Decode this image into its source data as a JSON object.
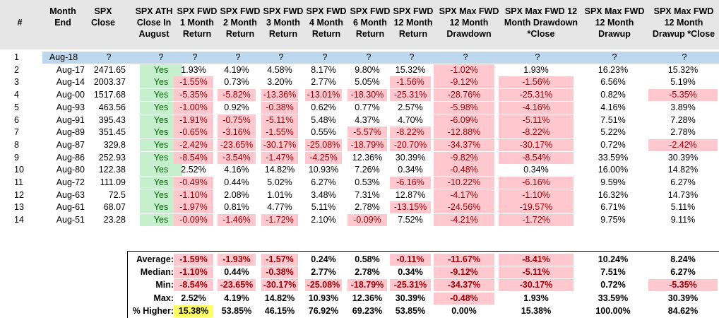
{
  "headers": [
    "#",
    "Month\nEnd",
    "SPX\nClose",
    "SPX ATH\nClose In\nAugust",
    "SPX FWD\n1 Month\nReturn",
    "SPX FWD\n2 Month\nReturn",
    "SPX FWD\n3 Month\nReturn",
    "SPX FWD\n4 Month\nReturn",
    "SPX FWD\n6 Month\nReturn",
    "SPX FWD\n12 Month\nReturn",
    "SPX Max FWD\n12 Month\nDrawdown",
    "SPX Max FWD 12\nMonth Drawdown\n*Close",
    "SPX Max FWD\n12 Month\nDrawup",
    "SPX Max FWD\n12 Month\nDrawup *Close"
  ],
  "rows": [
    [
      "1",
      "Aug-18",
      "?",
      "?",
      "?",
      "?",
      "?",
      "?",
      "?",
      "?",
      "?",
      "?",
      "?",
      "?"
    ],
    [
      "2",
      "Aug-17",
      "2471.65",
      "Yes",
      "1.93%",
      "4.19%",
      "4.58%",
      "8.17%",
      "9.80%",
      "15.32%",
      "-1.02%",
      "1.93%",
      "16.23%",
      "15.32%"
    ],
    [
      "3",
      "Aug-14",
      "2003.37",
      "Yes",
      "-1.55%",
      "0.73%",
      "3.20%",
      "2.77%",
      "5.05%",
      "-1.56%",
      "-9.12%",
      "-1.56%",
      "6.56%",
      "5.19%"
    ],
    [
      "4",
      "Aug-00",
      "1517.68",
      "Yes",
      "-5.35%",
      "-5.82%",
      "-13.36%",
      "-13.01%",
      "-18.30%",
      "-25.31%",
      "-28.76%",
      "-25.31%",
      "0.82%",
      "-5.35%"
    ],
    [
      "5",
      "Aug-93",
      "463.56",
      "Yes",
      "-1.00%",
      "0.92%",
      "-0.38%",
      "0.62%",
      "0.77%",
      "2.57%",
      "-5.98%",
      "-4.16%",
      "4.16%",
      "3.89%"
    ],
    [
      "6",
      "Aug-91",
      "395.43",
      "Yes",
      "-1.91%",
      "-0.75%",
      "-5.11%",
      "5.48%",
      "4.37%",
      "4.70%",
      "-6.09%",
      "-5.11%",
      "7.51%",
      "7.28%"
    ],
    [
      "7",
      "Aug-89",
      "351.45",
      "Yes",
      "-0.65%",
      "-3.16%",
      "-1.55%",
      "0.55%",
      "-5.57%",
      "-8.22%",
      "-12.88%",
      "-8.22%",
      "5.22%",
      "2.78%"
    ],
    [
      "8",
      "Aug-87",
      "329.8",
      "Yes",
      "-2.42%",
      "-23.65%",
      "-30.17%",
      "-25.08%",
      "-18.79%",
      "-20.70%",
      "-34.37%",
      "-30.17%",
      "0.72%",
      "-2.42%"
    ],
    [
      "9",
      "Aug-86",
      "252.93",
      "Yes",
      "-8.54%",
      "-3.54%",
      "-1.47%",
      "-4.25%",
      "12.36%",
      "30.39%",
      "-9.82%",
      "-8.54%",
      "33.59%",
      "30.39%"
    ],
    [
      "10",
      "Aug-80",
      "122.38",
      "Yes",
      "2.52%",
      "4.16%",
      "14.82%",
      "10.93%",
      "7.26%",
      "0.34%",
      "-0.48%",
      "0.34%",
      "16.00%",
      "14.82%"
    ],
    [
      "11",
      "Aug-72",
      "111.09",
      "Yes",
      "-0.49%",
      "0.44%",
      "5.02%",
      "6.27%",
      "0.53%",
      "-6.16%",
      "-10.22%",
      "-6.16%",
      "9.59%",
      "6.27%"
    ],
    [
      "12",
      "Aug-63",
      "72.5",
      "Yes",
      "-1.10%",
      "2.08%",
      "1.01%",
      "3.48%",
      "7.31%",
      "12.87%",
      "-4.17%",
      "-1.10%",
      "16.32%",
      "14.73%"
    ],
    [
      "13",
      "Aug-61",
      "68.07",
      "Yes",
      "-1.97%",
      "0.81%",
      "4.77%",
      "5.11%",
      "2.78%",
      "-13.15%",
      "-24.56%",
      "-19.57%",
      "6.71%",
      "5.11%"
    ],
    [
      "14",
      "Aug-51",
      "23.28",
      "Yes",
      "-0.09%",
      "-1.46%",
      "-1.72%",
      "2.10%",
      "-0.09%",
      "7.52%",
      "-4.21%",
      "-1.72%",
      "9.75%",
      "9.11%"
    ]
  ],
  "summary": [
    {
      "label": "Average:",
      "values": [
        "-1.59%",
        "-1.93%",
        "-1.57%",
        "0.24%",
        "0.58%",
        "-0.11%",
        "-11.67%",
        "-8.41%",
        "10.24%",
        "8.24%"
      ]
    },
    {
      "label": "Median:",
      "values": [
        "-1.10%",
        "0.44%",
        "-0.38%",
        "2.77%",
        "2.78%",
        "0.34%",
        "-9.12%",
        "-5.11%",
        "7.51%",
        "6.27%"
      ]
    },
    {
      "label": "Min:",
      "values": [
        "-8.54%",
        "-23.65%",
        "-30.17%",
        "-25.08%",
        "-18.79%",
        "-25.31%",
        "-34.37%",
        "-30.17%",
        "0.72%",
        "-5.35%"
      ]
    },
    {
      "label": "Max:",
      "values": [
        "2.52%",
        "4.19%",
        "14.82%",
        "10.93%",
        "12.36%",
        "30.39%",
        "-0.48%",
        "1.93%",
        "33.59%",
        "30.39%"
      ]
    },
    {
      "label": "% Higher:",
      "values": [
        "15.38%",
        "53.85%",
        "46.15%",
        "76.92%",
        "69.23%",
        "53.85%",
        "0.00%",
        "15.38%",
        "100.00%",
        "84.62%"
      ]
    }
  ],
  "colors": {
    "header_bg": "#e7e6e6",
    "neg_fill": "#ffc7ce",
    "neg_text": "#9c0006",
    "yes_fill": "#c6efce",
    "yes_text": "#006100",
    "first_row_fill": "#bdd7ee",
    "highlight": "#ffff66"
  }
}
